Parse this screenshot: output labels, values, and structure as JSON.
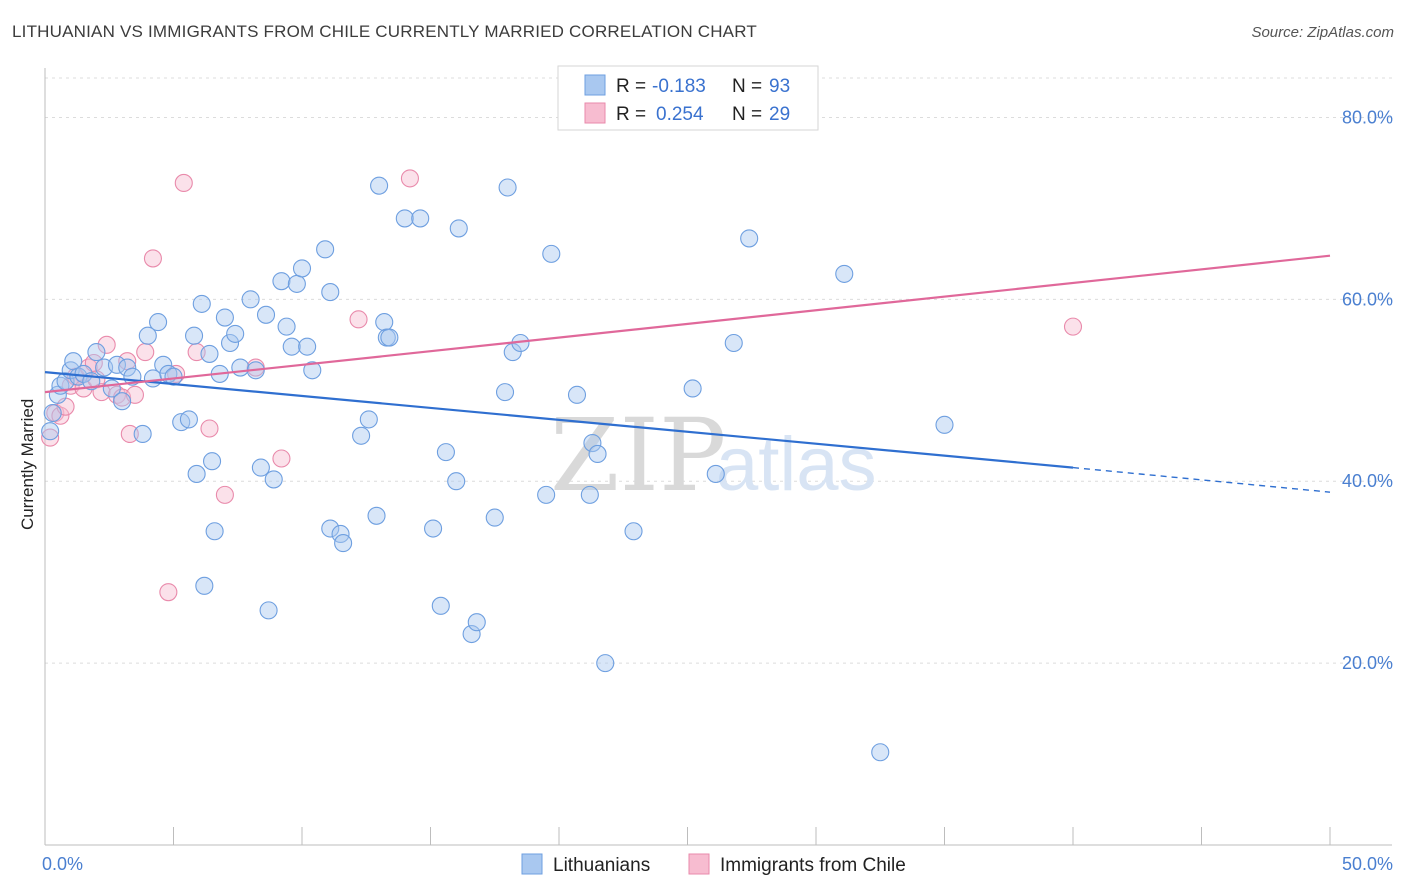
{
  "header": {
    "title": "LITHUANIAN VS IMMIGRANTS FROM CHILE CURRENTLY MARRIED CORRELATION CHART",
    "source": "Source: ZipAtlas.com"
  },
  "watermark": {
    "zip": "ZIP",
    "atlas": "atlas"
  },
  "legend": {
    "r_label": "R =",
    "n_label": "N =",
    "rows": [
      {
        "r": "-0.183",
        "n": "93",
        "color": "#a9c8f0",
        "edge": "#6e9fe0"
      },
      {
        "r": "0.254",
        "n": "29",
        "color": "#f7bcd0",
        "edge": "#e98aab"
      }
    ]
  },
  "bottom_legend": [
    {
      "label": "Lithuanians",
      "color": "#a9c8f0"
    },
    {
      "label": "Immigrants from Chile",
      "color": "#f7bcd0"
    }
  ],
  "chart_data": {
    "type": "scatter",
    "title": "LITHUANIAN VS IMMIGRANTS FROM CHILE CURRENTLY MARRIED CORRELATION CHART",
    "xlabel": "",
    "ylabel": "Currently Married",
    "xlim": [
      0,
      50
    ],
    "ylim": [
      0,
      85
    ],
    "x_ticks": [
      0,
      5,
      10,
      15,
      20,
      25,
      30,
      35,
      40,
      45,
      50
    ],
    "x_tick_labels": {
      "0": "0.0%",
      "50": "50.0%"
    },
    "y_ticks": [
      20,
      40,
      60,
      80
    ],
    "y_tick_labels": [
      "20.0%",
      "40.0%",
      "60.0%",
      "80.0%"
    ],
    "grid": true,
    "series": [
      {
        "name": "Lithuanians",
        "color": "#6e9fe0",
        "fill": "rgba(169,200,240,0.45)",
        "r": -0.183,
        "n": 93,
        "trend": {
          "x0": 0,
          "y0": 52.0,
          "x1": 40,
          "y1": 41.5,
          "dash_to_x": 50,
          "dash_to_y": 38.8
        },
        "points": [
          [
            0.2,
            45.5
          ],
          [
            0.3,
            47.5
          ],
          [
            0.5,
            49.5
          ],
          [
            0.6,
            50.5
          ],
          [
            0.8,
            51
          ],
          [
            1,
            52.2
          ],
          [
            1.1,
            53.2
          ],
          [
            1.3,
            51.5
          ],
          [
            1.5,
            51.8
          ],
          [
            1.8,
            51
          ],
          [
            2,
            54.2
          ],
          [
            2.3,
            52.5
          ],
          [
            2.6,
            50.2
          ],
          [
            2.8,
            52.8
          ],
          [
            3,
            48.8
          ],
          [
            3.2,
            52.5
          ],
          [
            3.4,
            51.5
          ],
          [
            3.8,
            45.2
          ],
          [
            4,
            56
          ],
          [
            4.2,
            51.3
          ],
          [
            4.4,
            57.5
          ],
          [
            4.6,
            52.8
          ],
          [
            4.8,
            51.8
          ],
          [
            5,
            51.5
          ],
          [
            5.3,
            46.5
          ],
          [
            5.6,
            46.8
          ],
          [
            5.8,
            56
          ],
          [
            5.9,
            40.8
          ],
          [
            6.1,
            59.5
          ],
          [
            6.2,
            28.5
          ],
          [
            6.4,
            54
          ],
          [
            6.5,
            42.2
          ],
          [
            6.6,
            34.5
          ],
          [
            6.8,
            51.8
          ],
          [
            7,
            58
          ],
          [
            7.2,
            55.2
          ],
          [
            7.4,
            56.2
          ],
          [
            7.6,
            52.5
          ],
          [
            8,
            60
          ],
          [
            8.2,
            52.2
          ],
          [
            8.4,
            41.5
          ],
          [
            8.6,
            58.3
          ],
          [
            8.7,
            25.8
          ],
          [
            8.9,
            40.2
          ],
          [
            9.2,
            62
          ],
          [
            9.4,
            57
          ],
          [
            9.6,
            54.8
          ],
          [
            9.8,
            61.7
          ],
          [
            10,
            63.4
          ],
          [
            10.2,
            54.8
          ],
          [
            10.4,
            52.2
          ],
          [
            10.9,
            65.5
          ],
          [
            11.1,
            60.8
          ],
          [
            11.1,
            34.8
          ],
          [
            11.5,
            34.2
          ],
          [
            11.6,
            33.2
          ],
          [
            12.3,
            45
          ],
          [
            12.6,
            46.8
          ],
          [
            12.9,
            36.2
          ],
          [
            13,
            72.5
          ],
          [
            13.2,
            57.5
          ],
          [
            13.3,
            55.8
          ],
          [
            13.4,
            55.8
          ],
          [
            14,
            68.9
          ],
          [
            14.6,
            68.9
          ],
          [
            15.1,
            34.8
          ],
          [
            15.4,
            26.3
          ],
          [
            15.6,
            43.2
          ],
          [
            16,
            40
          ],
          [
            16.1,
            67.8
          ],
          [
            16.6,
            23.2
          ],
          [
            16.8,
            24.5
          ],
          [
            17.5,
            36
          ],
          [
            17.9,
            49.8
          ],
          [
            18,
            72.3
          ],
          [
            18.2,
            54.2
          ],
          [
            18.5,
            55.2
          ],
          [
            19.5,
            38.5
          ],
          [
            19.7,
            65
          ],
          [
            20.7,
            49.5
          ],
          [
            21.2,
            38.5
          ],
          [
            21.3,
            44.2
          ],
          [
            21.5,
            43
          ],
          [
            21.8,
            20
          ],
          [
            22.9,
            34.5
          ],
          [
            25.2,
            50.2
          ],
          [
            26.1,
            40.8
          ],
          [
            26.8,
            55.2
          ],
          [
            27.4,
            66.7
          ],
          [
            31.1,
            62.8
          ],
          [
            32.5,
            10.2
          ],
          [
            35,
            46.2
          ]
        ]
      },
      {
        "name": "Immigrants from Chile",
        "color": "#e98aab",
        "fill": "rgba(247,188,208,0.45)",
        "r": 0.254,
        "n": 29,
        "trend": {
          "x0": 0,
          "y0": 49.8,
          "x1": 50,
          "y1": 64.8
        },
        "points": [
          [
            0.2,
            44.8
          ],
          [
            0.4,
            47.5
          ],
          [
            0.6,
            47.2
          ],
          [
            0.8,
            48.2
          ],
          [
            1,
            50.5
          ],
          [
            1.2,
            51.5
          ],
          [
            1.5,
            50.2
          ],
          [
            1.7,
            52.5
          ],
          [
            1.9,
            53
          ],
          [
            2,
            51.2
          ],
          [
            2.2,
            49.8
          ],
          [
            2.4,
            55
          ],
          [
            2.8,
            49.5
          ],
          [
            3,
            49.2
          ],
          [
            3.2,
            53.2
          ],
          [
            3.3,
            45.2
          ],
          [
            3.5,
            49.5
          ],
          [
            3.9,
            54.2
          ],
          [
            4.2,
            64.5
          ],
          [
            4.8,
            27.8
          ],
          [
            5.1,
            51.8
          ],
          [
            5.4,
            72.8
          ],
          [
            5.9,
            54.2
          ],
          [
            6.4,
            45.8
          ],
          [
            7,
            38.5
          ],
          [
            8.2,
            52.5
          ],
          [
            9.2,
            42.5
          ],
          [
            12.2,
            57.8
          ],
          [
            14.2,
            73.3
          ],
          [
            40,
            57
          ]
        ]
      }
    ]
  }
}
